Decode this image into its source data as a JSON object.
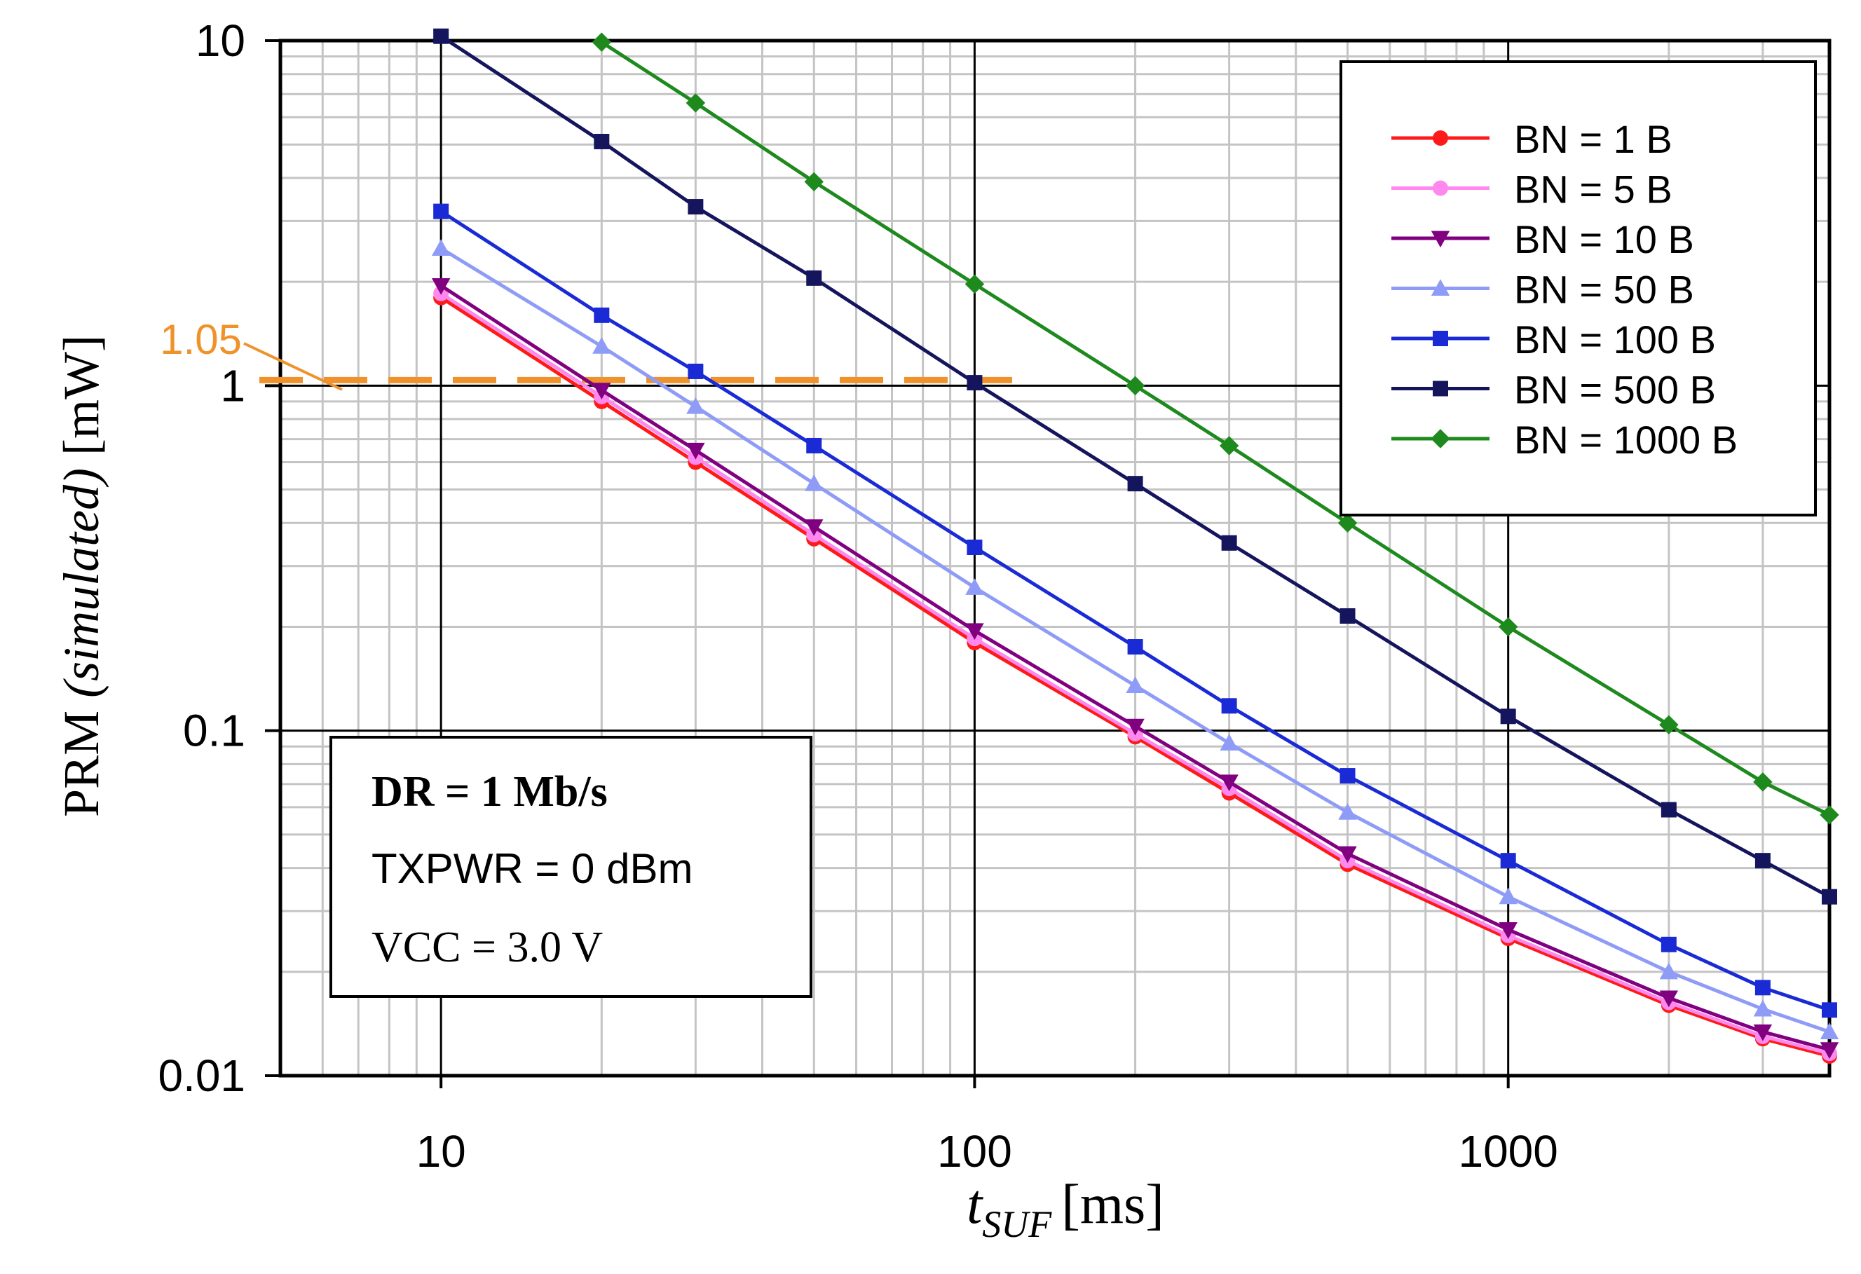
{
  "chart_data": {
    "type": "line",
    "x_scale": "log",
    "y_scale": "log",
    "xlim": [
      5,
      4000
    ],
    "ylim": [
      0.01,
      10
    ],
    "x_ticks": [
      10,
      100,
      1000
    ],
    "x_tick_labels": [
      "10",
      "100",
      "1000"
    ],
    "y_ticks": [
      0.01,
      0.1,
      1,
      10
    ],
    "y_tick_labels": [
      "0.01",
      "0.1",
      "1",
      "10"
    ],
    "xlabel": {
      "symbol": "t",
      "subscript": "SUF",
      "unit": "[ms]"
    },
    "ylabel": {
      "prefix": "PRM ",
      "italic": "(simulated)",
      "unit": " [mW]"
    },
    "grid": true,
    "legend_position": "top-right",
    "reference_line": {
      "y": 1.05,
      "label": "1.05",
      "x_range": [
        5,
        125
      ],
      "color": "#f0922b",
      "style": "dashed"
    },
    "info_box": {
      "position": "bottom-left",
      "lines": [
        "DR = 1 Mb/s",
        "TXPWR = 0 dBm",
        "VCC = 3.0 V"
      ]
    },
    "series": [
      {
        "name": "BN = 1 B",
        "color": "#ff1a1a",
        "marker": "circle",
        "x": [
          10,
          20,
          30,
          50,
          100,
          200,
          300,
          500,
          1000,
          2000,
          3000,
          4000
        ],
        "y": [
          1.8,
          0.9,
          0.6,
          0.36,
          0.18,
          0.096,
          0.066,
          0.041,
          0.025,
          0.016,
          0.0128,
          0.0114
        ]
      },
      {
        "name": "BN = 5 B",
        "color": "#ff88ee",
        "marker": "circle",
        "x": [
          10,
          20,
          30,
          50,
          100,
          200,
          300,
          500,
          1000,
          2000,
          3000,
          4000
        ],
        "y": [
          1.85,
          0.93,
          0.62,
          0.37,
          0.185,
          0.098,
          0.068,
          0.042,
          0.0255,
          0.0163,
          0.013,
          0.0116
        ]
      },
      {
        "name": "BN = 10 B",
        "color": "#800080",
        "marker": "triangle-down",
        "x": [
          10,
          20,
          30,
          50,
          100,
          200,
          300,
          500,
          1000,
          2000,
          3000,
          4000
        ],
        "y": [
          1.95,
          0.97,
          0.65,
          0.39,
          0.195,
          0.103,
          0.071,
          0.044,
          0.0265,
          0.0168,
          0.0134,
          0.0119
        ]
      },
      {
        "name": "BN = 50 B",
        "color": "#8f9cf7",
        "marker": "triangle-up",
        "x": [
          10,
          20,
          30,
          50,
          100,
          200,
          300,
          500,
          1000,
          2000,
          3000,
          4000
        ],
        "y": [
          2.5,
          1.3,
          0.87,
          0.52,
          0.26,
          0.135,
          0.092,
          0.058,
          0.033,
          0.02,
          0.0156,
          0.0134
        ]
      },
      {
        "name": "BN = 100 B",
        "color": "#1a2bd6",
        "marker": "square",
        "x": [
          10,
          20,
          30,
          50,
          100,
          200,
          300,
          500,
          1000,
          2000,
          3000,
          4000
        ],
        "y": [
          3.2,
          1.6,
          1.1,
          0.67,
          0.34,
          0.175,
          0.118,
          0.074,
          0.042,
          0.024,
          0.018,
          0.0155
        ]
      },
      {
        "name": "BN = 500 B",
        "color": "#15155e",
        "marker": "square",
        "x": [
          10,
          20,
          30,
          50,
          100,
          200,
          300,
          500,
          1000,
          2000,
          3000,
          4000
        ],
        "y": [
          10.3,
          5.1,
          3.3,
          2.05,
          1.02,
          0.52,
          0.35,
          0.215,
          0.11,
          0.059,
          0.042,
          0.033
        ]
      },
      {
        "name": "BN = 1000 B",
        "color": "#1e8a1e",
        "marker": "diamond",
        "x": [
          20,
          30,
          50,
          100,
          200,
          300,
          500,
          1000,
          2000,
          3000,
          4000
        ],
        "y": [
          9.9,
          6.6,
          3.9,
          1.97,
          1.0,
          0.67,
          0.4,
          0.2,
          0.104,
          0.071,
          0.057
        ]
      }
    ]
  }
}
